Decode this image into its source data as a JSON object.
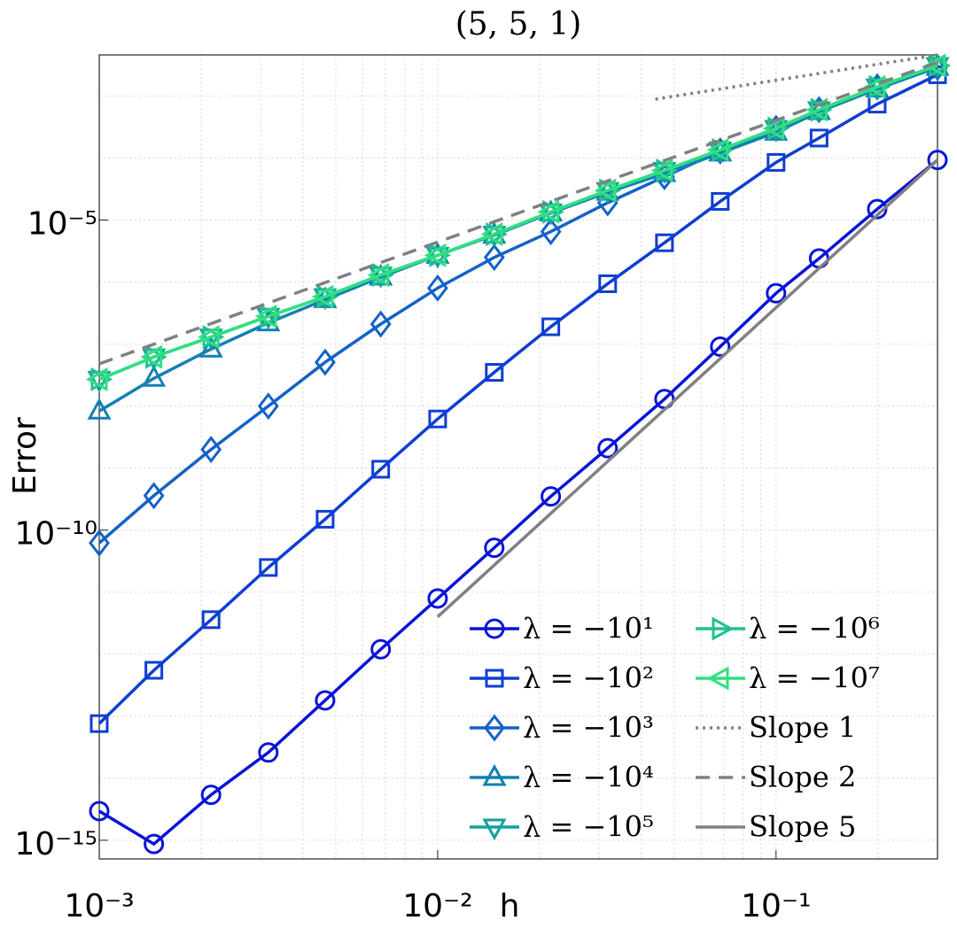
{
  "chart_data": {
    "type": "line",
    "title": "(5, 5, 1)",
    "xlabel": "h",
    "ylabel": "Error",
    "xscale": "log",
    "yscale": "log",
    "grid": true,
    "legend": "lower right",
    "legend_columns": 2,
    "xlim": [
      0.001,
      0.3
    ],
    "ylim": [
      5e-16,
      0.0046
    ],
    "xticks": [
      {
        "value": 0.001,
        "label": "10⁻³"
      },
      {
        "value": 0.01,
        "label": "10⁻²"
      },
      {
        "value": 0.1,
        "label": "10⁻¹"
      }
    ],
    "yticks": [
      {
        "value": 1e-15,
        "label": "10⁻¹⁵"
      },
      {
        "value": 1e-10,
        "label": "10⁻¹⁰"
      },
      {
        "value": 1e-05,
        "label": "10⁻⁵"
      }
    ],
    "xminor": [
      0.002,
      0.003,
      0.004,
      0.005,
      0.006,
      0.007,
      0.008,
      0.009,
      0.02,
      0.03,
      0.04,
      0.05,
      0.06,
      0.07,
      0.08,
      0.09,
      0.2,
      0.3
    ],
    "yminor": [
      1e-14,
      1e-13,
      1e-12,
      1e-11,
      1e-09,
      1e-08,
      1e-07,
      1e-06,
      0.0001,
      0.001
    ],
    "x": [
      0.001,
      0.00145,
      0.00214,
      0.00316,
      0.00465,
      0.00679,
      0.01,
      0.0147,
      0.0216,
      0.0318,
      0.0468,
      0.0684,
      0.1,
      0.134,
      0.199,
      0.3
    ],
    "series": [
      {
        "name": "λ = −10¹",
        "color": "#0a14d8",
        "marker": "o",
        "values": [
          2.95e-15,
          8.7e-16,
          5.4e-15,
          2.6e-14,
          1.8e-13,
          1.2e-12,
          7.9e-12,
          5.2e-11,
          3.5e-10,
          2.1e-09,
          1.3e-08,
          9.1e-08,
          6.6e-07,
          2.4e-06,
          1.5e-05,
          9.3e-05
        ]
      },
      {
        "name": "λ = −10²",
        "color": "#0f3ed2",
        "marker": "s",
        "values": [
          7.6e-14,
          5.5e-13,
          3.6e-12,
          2.5e-11,
          1.5e-10,
          9.6e-10,
          6.2e-09,
          3.5e-08,
          1.9e-07,
          9.4e-07,
          4.3e-06,
          2e-05,
          8.5e-05,
          0.00021,
          0.00074,
          0.0022
        ]
      },
      {
        "name": "λ = −10³",
        "color": "#1462c6",
        "marker": "d",
        "values": [
          6.2e-11,
          3.6e-10,
          2e-09,
          1e-08,
          5.1e-08,
          2.1e-07,
          8e-07,
          2.5e-06,
          6.5e-06,
          1.9e-05,
          5e-05,
          0.00013,
          0.0003,
          0.0006,
          0.0014,
          0.0029
        ]
      },
      {
        "name": "λ = −10⁴",
        "color": "#1280b4",
        "marker": "^",
        "values": [
          8.3e-09,
          2.8e-08,
          8.3e-08,
          2.2e-07,
          5.2e-07,
          1.2e-06,
          2.7e-06,
          5.7e-06,
          1.3e-05,
          2.8e-05,
          5.6e-05,
          0.00012,
          0.00026,
          0.00056,
          0.0013,
          0.0029
        ]
      },
      {
        "name": "λ = −10⁵",
        "color": "#14a0a0",
        "marker": "v",
        "values": [
          2.7e-08,
          6.2e-08,
          1.3e-07,
          2.8e-07,
          5.8e-07,
          1.3e-06,
          2.7e-06,
          5.9e-06,
          1.35e-05,
          3e-05,
          6.3e-05,
          0.000135,
          0.0003,
          0.0006,
          0.0014,
          0.0031
        ]
      },
      {
        "name": "λ = −10⁶",
        "color": "#22c090",
        "marker": ">",
        "values": [
          2.7e-08,
          6.2e-08,
          1.3e-07,
          2.8e-07,
          5.8e-07,
          1.3e-06,
          2.7e-06,
          5.9e-06,
          1.35e-05,
          3e-05,
          6.3e-05,
          0.000135,
          0.0003,
          0.0006,
          0.0014,
          0.0031
        ]
      },
      {
        "name": "λ = −10⁷",
        "color": "#30e080",
        "marker": "<",
        "values": [
          2.7e-08,
          6.2e-08,
          1.3e-07,
          2.8e-07,
          5.8e-07,
          1.3e-06,
          2.7e-06,
          5.9e-06,
          1.35e-05,
          3e-05,
          6.3e-05,
          0.000135,
          0.0003,
          0.0006,
          0.0014,
          0.0031
        ]
      },
      {
        "name": "Slope 1",
        "color": "#808080",
        "style": "dotted",
        "x": [
          0.044,
          0.3
        ],
        "values": [
          0.00089,
          0.0046
        ]
      },
      {
        "name": "Slope 2",
        "color": "#808080",
        "style": "dashed",
        "x": [
          0.001,
          0.3
        ],
        "values": [
          4.8e-08,
          0.0035
        ]
      },
      {
        "name": "Slope 5",
        "color": "#808080",
        "style": "solid",
        "x": [
          0.01,
          0.3
        ],
        "values": [
          4e-12,
          9.3e-05
        ]
      }
    ]
  }
}
